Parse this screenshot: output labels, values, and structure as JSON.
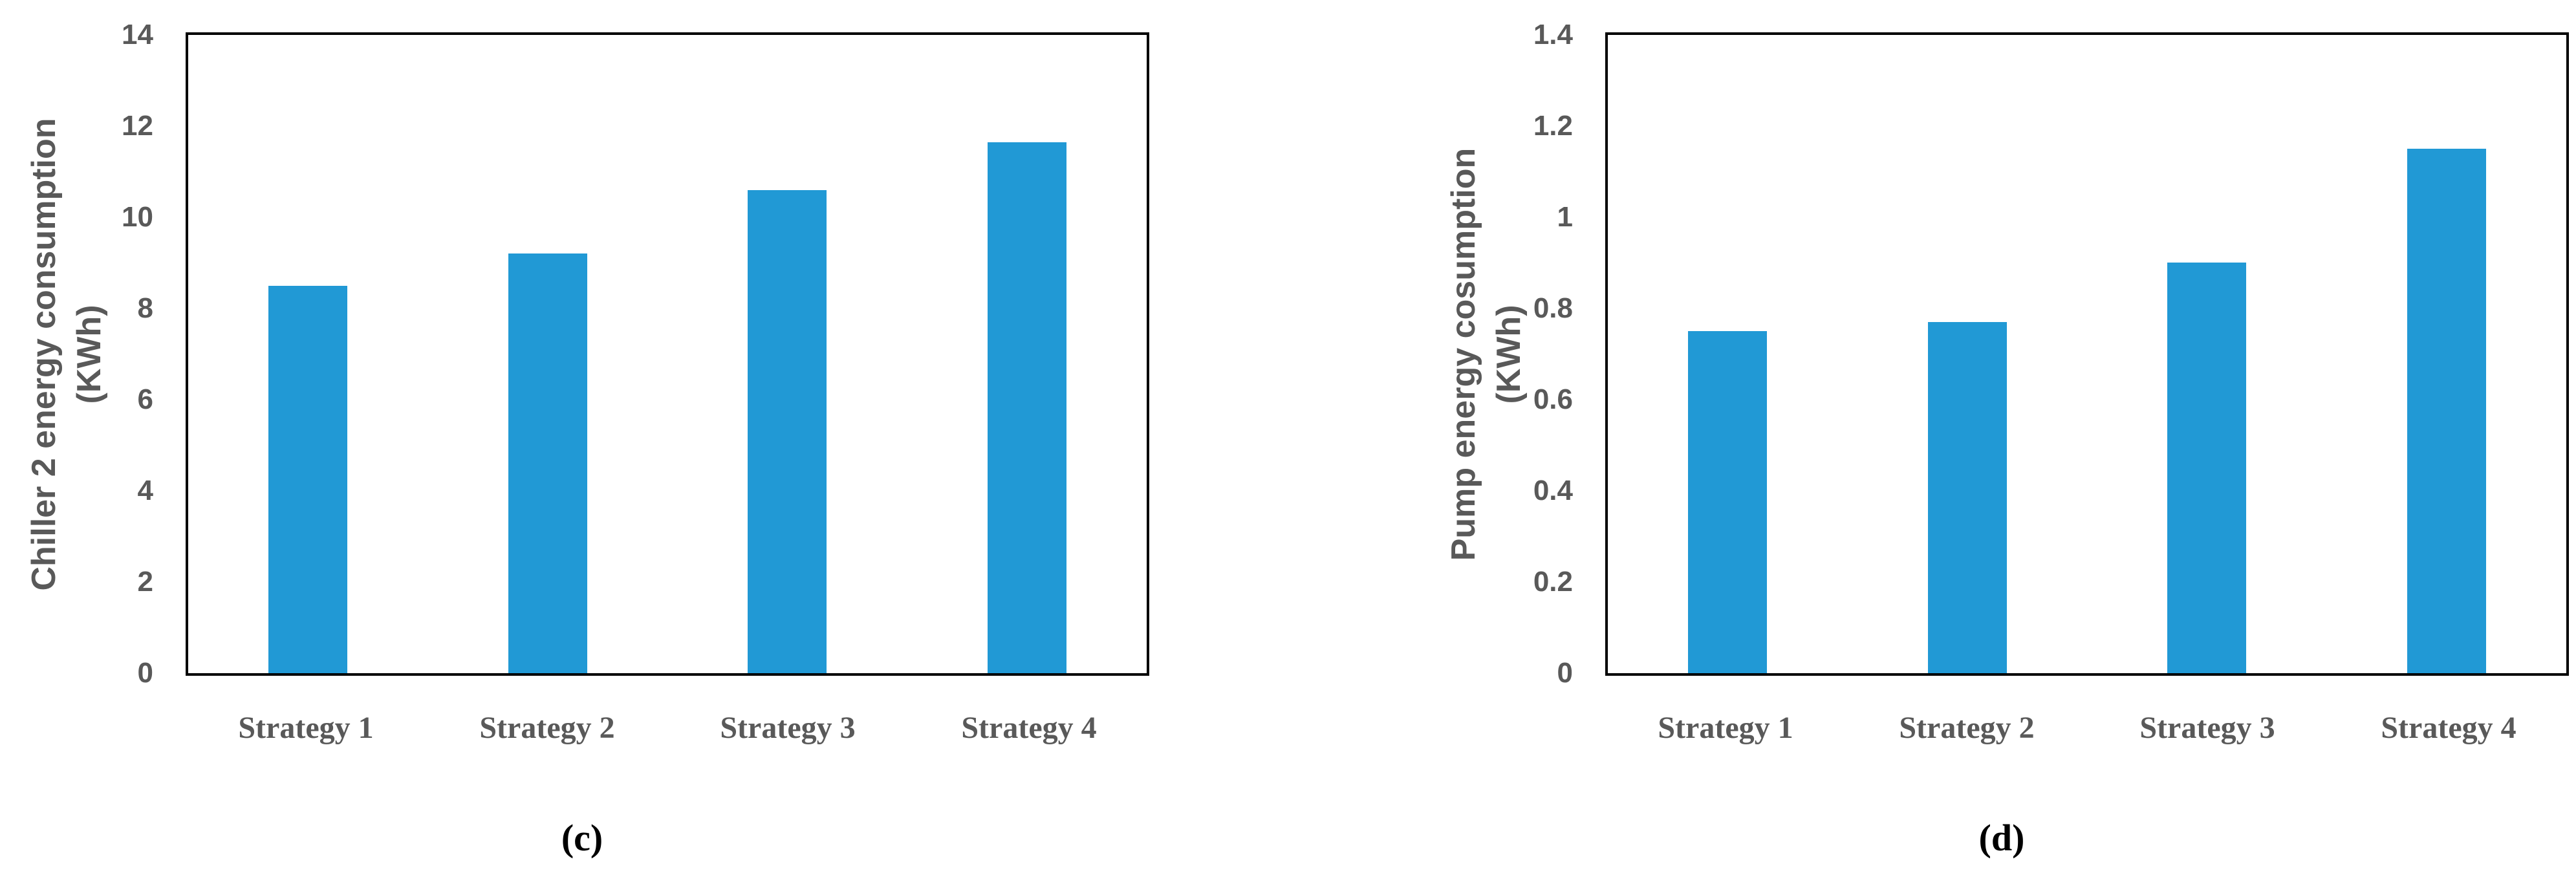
{
  "figure": {
    "background": "#FFFFFF"
  },
  "styles": {
    "bar_color": "#2199D5",
    "axis_text_color": "#595959",
    "caption_color": "#000000",
    "axis_line_color": "#000000"
  },
  "chart_data": [
    {
      "type": "bar",
      "panel_label": "(c)",
      "title": "",
      "ylabel": "Chiller 2 energy consumption (KWh)",
      "ylabel_lines": [
        "Chiller 2 energy consumption",
        "(KWh)"
      ],
      "xlabel": "",
      "categories": [
        "Strategy 1",
        "Strategy 2",
        "Strategy 3",
        "Strategy 4"
      ],
      "values": [
        8.5,
        9.2,
        10.6,
        11.65
      ],
      "ylim": [
        0,
        14
      ],
      "ytick_values": [
        0,
        2,
        4,
        6,
        8,
        10,
        12,
        14
      ],
      "ytick_labels": [
        "0",
        "2",
        "4",
        "6",
        "8",
        "10",
        "12",
        "14"
      ],
      "grid": false,
      "legend": "none"
    },
    {
      "type": "bar",
      "panel_label": "(d)",
      "title": "",
      "ylabel": "Pump energy cosumption (KWh)",
      "ylabel_lines": [
        "Pump energy cosumption",
        "(KWh)"
      ],
      "xlabel": "",
      "categories": [
        "Strategy 1",
        "Strategy 2",
        "Strategy 3",
        "Strategy 4"
      ],
      "values": [
        0.75,
        0.77,
        0.9,
        1.15
      ],
      "ylim": [
        0,
        1.4
      ],
      "ytick_values": [
        0,
        0.2,
        0.4,
        0.6,
        0.8,
        1,
        1.2,
        1.4
      ],
      "ytick_labels": [
        "0",
        "0.2",
        "0.4",
        "0.6",
        "0.8",
        "1",
        "1.2",
        "1.4"
      ],
      "grid": false,
      "legend": "none"
    }
  ]
}
